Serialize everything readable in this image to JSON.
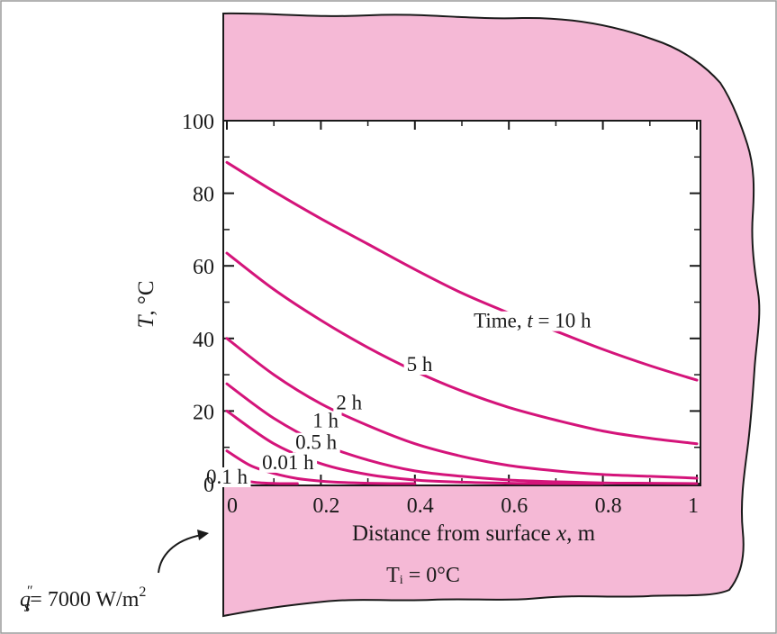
{
  "colors": {
    "solid": "#f5b9d6",
    "curve": "#d4147a",
    "outline": "#1a1a1a"
  },
  "annotations": {
    "initial_temp": "Tᵢ = 0°C",
    "heat_flux_q": "q",
    "heat_flux_sup": "″",
    "heat_flux_sub": "s",
    "heat_flux_value": "= 7000 W/m",
    "heat_flux_exp": "2"
  },
  "chart_data": {
    "type": "line",
    "xlabel_prefix": "Distance from surface ",
    "xlabel_var": "x",
    "xlabel_suffix": ", m",
    "ylabel_var": "T",
    "ylabel_suffix": ", °C",
    "xlim": [
      0,
      1
    ],
    "ylim": [
      0,
      100
    ],
    "xticks": [
      {
        "value": 0,
        "label": "0"
      },
      {
        "value": 0.2,
        "label": "0.2"
      },
      {
        "value": 0.4,
        "label": "0.4"
      },
      {
        "value": 0.6,
        "label": "0.6"
      },
      {
        "value": 0.8,
        "label": "0.8"
      },
      {
        "value": 1,
        "label": "1"
      }
    ],
    "yticks": [
      {
        "value": 0,
        "label": "0"
      },
      {
        "value": 20,
        "label": "20"
      },
      {
        "value": 40,
        "label": "40"
      },
      {
        "value": 60,
        "label": "60"
      },
      {
        "value": 80,
        "label": "80"
      },
      {
        "value": 100,
        "label": "100"
      }
    ],
    "series": [
      {
        "name": "Time, t = 10 h",
        "x": [
          0,
          0.1,
          0.2,
          0.3,
          0.4,
          0.5,
          0.6,
          0.7,
          0.8,
          0.9,
          1.0
        ],
        "y": [
          88.5,
          80.5,
          73,
          66,
          59,
          52.5,
          47,
          42,
          37,
          32.5,
          28.5
        ]
      },
      {
        "name": "5 h",
        "x": [
          0,
          0.1,
          0.2,
          0.3,
          0.4,
          0.5,
          0.6,
          0.7,
          0.8,
          0.9,
          1.0
        ],
        "y": [
          63.5,
          53.5,
          45,
          37.5,
          31,
          25.5,
          21,
          17.5,
          14.5,
          12.5,
          11
        ]
      },
      {
        "name": "2 h",
        "x": [
          0,
          0.1,
          0.2,
          0.3,
          0.4,
          0.5,
          0.6,
          0.7,
          0.8,
          0.9,
          1.0
        ],
        "y": [
          40,
          30,
          22,
          16,
          11,
          7.5,
          5,
          3.5,
          2.5,
          2,
          1.5
        ]
      },
      {
        "name": "1 h",
        "x": [
          0,
          0.1,
          0.2,
          0.3,
          0.4,
          0.5,
          0.6,
          0.7,
          0.8,
          0.9,
          1.0
        ],
        "y": [
          27.5,
          18,
          11,
          6.5,
          3.5,
          2,
          1,
          0.5,
          0.2,
          0.1,
          0
        ]
      },
      {
        "name": "0.5 h",
        "x": [
          0,
          0.1,
          0.2,
          0.3,
          0.4,
          0.5,
          0.6,
          0.7,
          0.8
        ],
        "y": [
          20,
          11,
          5.5,
          2.5,
          1,
          0.4,
          0.1,
          0,
          0
        ]
      },
      {
        "name": "0.1 h",
        "x": [
          0,
          0.05,
          0.1,
          0.15,
          0.2,
          0.25,
          0.3,
          0.35,
          0.4
        ],
        "y": [
          9,
          5,
          2.8,
          1.4,
          0.7,
          0.3,
          0.1,
          0,
          0
        ]
      },
      {
        "name": "0.01 h",
        "x": [
          0,
          0.02,
          0.04,
          0.06,
          0.08,
          0.1,
          0.12,
          0.15
        ],
        "y": [
          3,
          1.6,
          0.8,
          0.35,
          0.15,
          0.05,
          0,
          0
        ]
      }
    ],
    "curve_labels": [
      {
        "text_prefix": "Time, ",
        "text_var": "t",
        "text_suffix": " = 10 h",
        "x": 0.65,
        "y": 43
      },
      {
        "text": "5 h",
        "x": 0.41,
        "y": 31
      },
      {
        "text": "2 h",
        "x": 0.26,
        "y": 20.5
      },
      {
        "text": "1 h",
        "x": 0.21,
        "y": 15.5
      },
      {
        "text": "0.5 h",
        "x": 0.19,
        "y": 9.5
      },
      {
        "text": "0.1 h",
        "x": 0.0,
        "y": 0
      },
      {
        "text": "0.01 h",
        "x": 0.13,
        "y": 4
      }
    ]
  }
}
